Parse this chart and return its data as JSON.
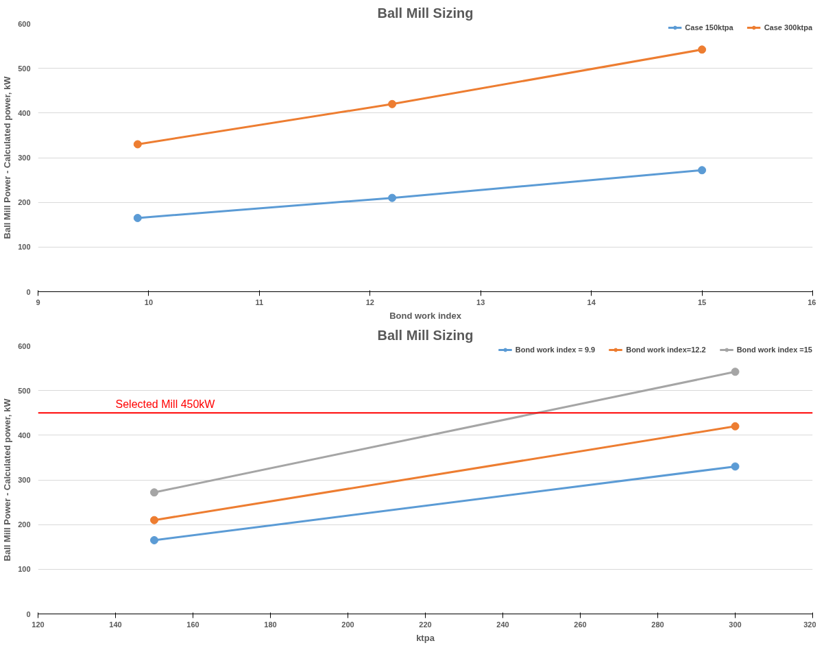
{
  "chart_data": [
    {
      "type": "line",
      "title": "Ball Mill Sizing",
      "xlabel": "Bond work index",
      "ylabel": "Ball Mill Power - Calculated power, kW",
      "x": [
        9.9,
        12.2,
        15
      ],
      "series": [
        {
          "name": "Case 150ktpa",
          "color": "#5b9bd5",
          "values": [
            165,
            210,
            272
          ]
        },
        {
          "name": "Case 300ktpa",
          "color": "#ed7d31",
          "values": [
            330,
            420,
            542
          ]
        }
      ],
      "xlim": [
        9,
        16
      ],
      "xticks": [
        9,
        10,
        11,
        12,
        13,
        14,
        15,
        16
      ],
      "ylim": [
        0,
        600
      ],
      "yticks": [
        0,
        100,
        200,
        300,
        400,
        500,
        600
      ],
      "grid": "y",
      "legend": "top right",
      "marker": "circle"
    },
    {
      "type": "line",
      "title": "Ball Mill Sizing",
      "xlabel": "ktpa",
      "ylabel": "Ball Mill Power - Calculated power, kW",
      "x": [
        150,
        300
      ],
      "series": [
        {
          "name": "Bond work index = 9.9",
          "color": "#5b9bd5",
          "values": [
            165,
            330
          ]
        },
        {
          "name": "Bond work index=12.2",
          "color": "#ed7d31",
          "values": [
            210,
            420
          ]
        },
        {
          "name": "Bond work index =15",
          "color": "#a5a5a5",
          "values": [
            272,
            542
          ]
        }
      ],
      "xlim": [
        120,
        320
      ],
      "xticks": [
        120,
        140,
        160,
        180,
        200,
        220,
        240,
        260,
        280,
        300,
        320
      ],
      "ylim": [
        0,
        600
      ],
      "yticks": [
        0,
        100,
        200,
        300,
        400,
        500,
        600
      ],
      "grid": "y",
      "legend": "top right",
      "marker": "circle",
      "ref_lines": [
        {
          "axis": "y",
          "value": 450,
          "label": "Selected Mill 450kW",
          "color": "#ff0000"
        }
      ]
    }
  ]
}
